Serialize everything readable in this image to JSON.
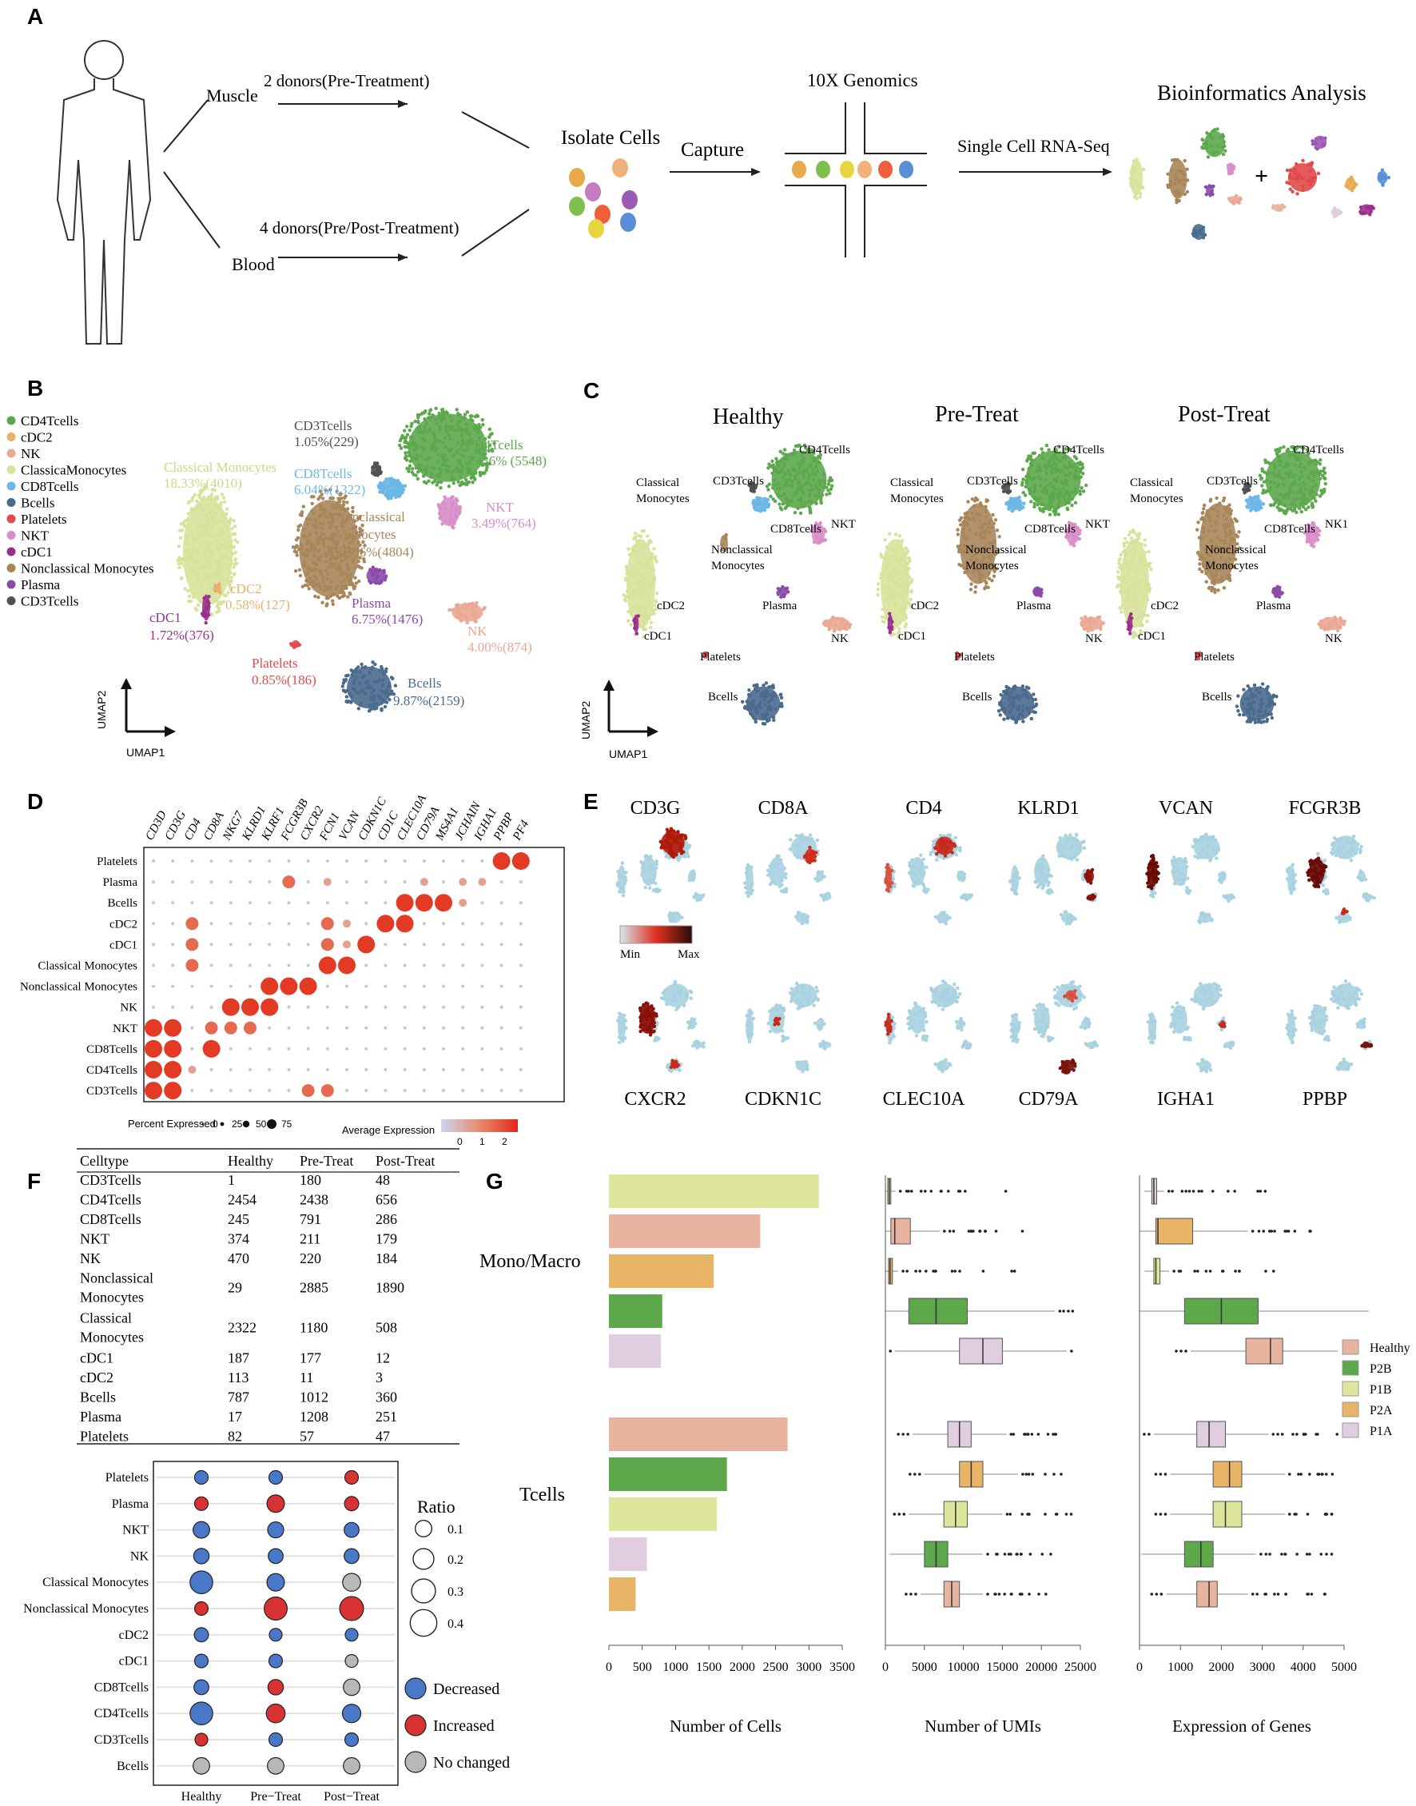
{
  "panels": {
    "A": "A",
    "B": "B",
    "C": "C",
    "D": "D",
    "E": "E",
    "F": "F",
    "G": "G"
  },
  "panelA": {
    "muscle": "Muscle",
    "blood": "Blood",
    "muscle_donors": "2 donors(Pre-Treatment)",
    "blood_donors": "4 donors(Pre/Post-Treatment)",
    "isolate": "Isolate Cells",
    "capture": "Capture",
    "tenx": "10X Genomics",
    "scrna": "Single Cell RNA-Seq",
    "bioinfo": "Bioinformatics Analysis",
    "plus": "+",
    "cell_colors": [
      "#e8a84c",
      "#f0b27a",
      "#c47cc0",
      "#7fbf4d",
      "#f05e3c",
      "#9b59b6",
      "#e8d43c",
      "#5a8fd8"
    ]
  },
  "panelB": {
    "legend": [
      {
        "label": "CD4Tcells",
        "color": "#5da84c"
      },
      {
        "label": "cDC2",
        "color": "#e8b06a"
      },
      {
        "label": "NK",
        "color": "#eaa794"
      },
      {
        "label": "ClassicaMonocytes",
        "color": "#d7e39a"
      },
      {
        "label": "CD8Tcells",
        "color": "#6bb8e8"
      },
      {
        "label": "Bcells",
        "color": "#4a6a8e"
      },
      {
        "label": "Platelets",
        "color": "#e04a4a"
      },
      {
        "label": "NKT",
        "color": "#d88ec8"
      },
      {
        "label": "cDC1",
        "color": "#9b2f8e"
      },
      {
        "label": "Nonclassical Monocytes",
        "color": "#a8865a"
      },
      {
        "label": "Plasma",
        "color": "#8a4aa8"
      },
      {
        "label": "CD3Tcells",
        "color": "#505055"
      }
    ],
    "labels": {
      "cd3_name": "CD3Tcells",
      "cd3_pct": "1.05%(229)",
      "cd4_name": "CD4Tcells",
      "cd4_pct": "25.36%  (5548)",
      "classical_name": "Classical Monocytes",
      "classical_pct": "18.33%(4010)",
      "cd8_name": "CD8Tcells",
      "cd8_pct": "6.04%(1322)",
      "noncl_name1": "Nonclassical",
      "noncl_name2": "Monocytes",
      "noncl_pct": "21.96%(4804)",
      "nkt_name": "NKT",
      "nkt_pct": "3.49%(764)",
      "cdc2_name": "cDC2",
      "cdc2_pct": "0.58%(127)",
      "plasma_name": "Plasma",
      "plasma_pct": "6.75%(1476)",
      "nk_name": "NK",
      "nk_pct": "4.00%(874)",
      "cdc1_name": "cDC1",
      "cdc1_pct": "1.72%(376)",
      "platelets_name": "Platelets",
      "platelets_pct": "0.85%(186)",
      "bcells_name": "Bcells",
      "bcells_pct": "9.87%(2159)"
    },
    "umap1": "UMAP1",
    "umap2": "UMAP2"
  },
  "panelC": {
    "titles": [
      "Healthy",
      "Pre-Treat",
      "Post-Treat"
    ],
    "healthy": {
      "cd4": "CD4Tcells",
      "cd3": "CD3Tcells",
      "classical1": "Classical",
      "classical2": "Monocytes",
      "cd8": "CD8Tcells",
      "nkt": "NKT",
      "noncl1": "Nonclassical",
      "noncl2": "Monocytes",
      "cdc2": "cDC2",
      "plasma": "Plasma",
      "cdc1": "cDC1",
      "nk": "NK",
      "platelets": "Platelets",
      "bcells": "Bcells"
    },
    "pre": {
      "cd4": "CD4Tcells",
      "cd3": "CD3Tcells",
      "classical1": "Classical",
      "classical2": "Monocytes",
      "cd8": "CD8Tcells",
      "nkt": "NKT",
      "noncl1": "Nonclassical",
      "noncl2": "Monocytes",
      "cdc2": "cDC2",
      "plasma": "Plasma",
      "cdc1": "cDC1",
      "nk": "NK",
      "platelets": "Platelets",
      "bcells": "Bcells"
    },
    "post": {
      "cd4": "CD4Tcells",
      "cd3": "CD3Tcells",
      "classical1": "Classical",
      "classical2": "Monocytes",
      "cd8": "CD8Tcells",
      "nkt": "NK1",
      "noncl1": "Nonclassical",
      "noncl2": "Monocytes",
      "cdc2": "cDC2",
      "plasma": "Plasma",
      "cdc1": "cDC1",
      "nk": "NK",
      "platelets": "Platelets",
      "bcells": "Bcells"
    },
    "umap1": "UMAP1",
    "umap2": "UMAP2"
  },
  "panelE": {
    "top_genes": [
      "CD3G",
      "CD8A",
      "CD4",
      "KLRD1",
      "VCAN",
      "FCGR3B"
    ],
    "bottom_genes": [
      "CXCR2",
      "CDKN1C",
      "CLEC10A",
      "CD79A",
      "IGHA1",
      "PPBP"
    ],
    "min": "Min",
    "max": "Max"
  },
  "panelF": {
    "columns": [
      "Celltype",
      "Healthy",
      "Pre-Treat",
      "Post-Treat"
    ],
    "rows": [
      {
        "name": [
          "CD3Tcells"
        ],
        "h": "1",
        "pre": "180",
        "post": "48"
      },
      {
        "name": [
          "CD4Tcells"
        ],
        "h": "2454",
        "pre": "2438",
        "post": "656"
      },
      {
        "name": [
          "CD8Tcells"
        ],
        "h": "245",
        "pre": "791",
        "post": "286"
      },
      {
        "name": [
          "NKT"
        ],
        "h": "374",
        "pre": "211",
        "post": "179"
      },
      {
        "name": [
          "NK"
        ],
        "h": "470",
        "pre": "220",
        "post": "184"
      },
      {
        "name": [
          "Nonclassical",
          "Monocytes"
        ],
        "h": "29",
        "pre": "2885",
        "post": "1890"
      },
      {
        "name": [
          "Classical",
          "Monocytes"
        ],
        "h": "2322",
        "pre": "1180",
        "post": "508"
      },
      {
        "name": [
          "cDC1"
        ],
        "h": "187",
        "pre": "177",
        "post": "12"
      },
      {
        "name": [
          "cDC2"
        ],
        "h": "113",
        "pre": "11",
        "post": "3"
      },
      {
        "name": [
          "Bcells"
        ],
        "h": "787",
        "pre": "1012",
        "post": "360"
      },
      {
        "name": [
          "Plasma"
        ],
        "h": "17",
        "pre": "1208",
        "post": "251"
      },
      {
        "name": [
          "Platelets"
        ],
        "h": "82",
        "pre": "57",
        "post": "47"
      }
    ],
    "ratio_title": "Ratio",
    "ratio_sizes": [
      "0.1",
      "0.2",
      "0.3",
      "0.4"
    ],
    "status": [
      {
        "label": "Decreased",
        "color": "#4a78c8"
      },
      {
        "label": "Increased",
        "color": "#d83232"
      },
      {
        "label": "No changed",
        "color": "#b8b8b8"
      }
    ]
  },
  "chart_data": [
    {
      "type": "scatter",
      "panel": "D",
      "genes": [
        "CD3D",
        "CD3G",
        "CD4",
        "CD8A",
        "NKG7",
        "KLRD1",
        "KLRF1",
        "FCGR3B",
        "CXCR2",
        "FCN1",
        "VCAN",
        "CDKN1C",
        "CD1C",
        "CLEC10A",
        "CD79A",
        "MS4A1",
        "JCHAIN",
        "IGHA1",
        "PPBP",
        "PF4"
      ],
      "celltypes": [
        "Platelets",
        "Plasma",
        "Bcells",
        "cDC2",
        "cDC1",
        "Classical Monocytes",
        "Nonclassical Monocytes",
        "NK",
        "NKT",
        "CD8Tcells",
        "CD4Tcells",
        "CD3Tcells"
      ],
      "dots": [
        [
          0,
          0,
          0,
          0,
          0,
          0,
          0,
          0,
          0,
          0,
          0,
          0,
          0,
          0,
          0,
          0,
          0,
          0,
          3,
          3
        ],
        [
          0,
          0,
          0,
          0,
          0,
          0,
          0,
          2,
          0,
          1,
          0,
          0,
          0,
          0,
          1,
          0,
          1,
          1,
          0,
          0
        ],
        [
          0,
          0,
          0,
          0,
          0,
          0,
          0,
          0,
          0,
          0,
          0,
          0,
          0,
          3,
          3,
          3,
          1,
          0,
          0,
          0
        ],
        [
          0,
          0,
          2,
          0,
          0,
          0,
          0,
          0,
          0,
          2,
          1,
          0,
          3,
          3,
          0,
          0,
          0,
          0,
          0,
          0
        ],
        [
          0,
          0,
          2,
          0,
          0,
          0,
          0,
          0,
          0,
          2,
          1,
          3,
          0,
          0,
          0,
          0,
          0,
          0,
          0,
          0
        ],
        [
          0,
          0,
          2,
          0,
          0,
          0,
          0,
          0,
          0,
          3,
          3,
          0,
          0,
          0,
          0,
          0,
          0,
          0,
          0,
          0
        ],
        [
          0,
          0,
          0,
          0,
          0,
          0,
          3,
          3,
          3,
          0,
          0,
          0,
          0,
          0,
          0,
          0,
          0,
          0,
          0,
          0
        ],
        [
          0,
          0,
          0,
          0,
          3,
          3,
          3,
          0,
          0,
          0,
          0,
          0,
          0,
          0,
          0,
          0,
          0,
          0,
          0,
          0
        ],
        [
          3,
          3,
          0,
          2,
          2,
          2,
          0,
          0,
          0,
          0,
          0,
          0,
          0,
          0,
          0,
          0,
          0,
          0,
          0,
          0
        ],
        [
          3,
          3,
          0,
          3,
          0,
          0,
          0,
          0,
          0,
          0,
          0,
          0,
          0,
          0,
          0,
          0,
          0,
          0,
          0,
          0
        ],
        [
          3,
          3,
          1,
          0,
          0,
          0,
          0,
          0,
          0,
          0,
          0,
          0,
          0,
          0,
          0,
          0,
          0,
          0,
          0,
          0
        ],
        [
          3,
          3,
          0,
          0,
          0,
          0,
          0,
          0,
          2,
          2,
          0,
          0,
          0,
          0,
          0,
          0,
          0,
          0,
          0,
          0
        ]
      ],
      "size_legend_title": "Percent Expressed",
      "size_legend": [
        "0",
        "25",
        "50",
        "75"
      ],
      "color_legend_title": "Average Expression",
      "color_ticks": [
        "0",
        "1",
        "2"
      ]
    },
    {
      "type": "scatter",
      "panel": "F",
      "x": [
        "Healthy",
        "Pre−Treat",
        "Post−Treat"
      ],
      "celltypes": [
        "Platelets",
        "Plasma",
        "NKT",
        "NK",
        "Classical Monocytes",
        "Nonclassical Monocytes",
        "cDC2",
        "cDC1",
        "CD8Tcells",
        "CD4Tcells",
        "CD3Tcells",
        "Bcells"
      ],
      "ratio": [
        [
          0.05,
          0.05,
          0.05
        ],
        [
          0.05,
          0.12,
          0.06
        ],
        [
          0.1,
          0.09,
          0.07
        ],
        [
          0.08,
          0.07,
          0.07
        ],
        [
          0.26,
          0.12,
          0.13
        ],
        [
          0.05,
          0.27,
          0.3
        ],
        [
          0.06,
          0.04,
          0.04
        ],
        [
          0.05,
          0.05,
          0.04
        ],
        [
          0.07,
          0.08,
          0.1
        ],
        [
          0.26,
          0.15,
          0.14
        ],
        [
          0.04,
          0.05,
          0.05
        ],
        [
          0.1,
          0.1,
          0.1
        ]
      ],
      "status": [
        [
          "D",
          "D",
          "I"
        ],
        [
          "I",
          "I",
          "I"
        ],
        [
          "D",
          "D",
          "D"
        ],
        [
          "D",
          "D",
          "D"
        ],
        [
          "D",
          "D",
          "N"
        ],
        [
          "I",
          "I",
          "I"
        ],
        [
          "D",
          "D",
          "D"
        ],
        [
          "D",
          "D",
          "N"
        ],
        [
          "D",
          "I",
          "N"
        ],
        [
          "D",
          "I",
          "D"
        ],
        [
          "I",
          "D",
          "D"
        ],
        [
          "N",
          "N",
          "N"
        ]
      ]
    },
    {
      "type": "bar",
      "panel": "G",
      "xlabel": "Number of Cells",
      "xticks": [
        "0",
        "500",
        "1000",
        "1500",
        "2000",
        "2500",
        "3000",
        "3500"
      ],
      "xlim": [
        0,
        3500
      ],
      "groups": [
        {
          "label": "Mono/Macro",
          "bars": [
            {
              "sample": "P1B",
              "value": 3150
            },
            {
              "sample": "Healthy",
              "value": 2270
            },
            {
              "sample": "P2A",
              "value": 1570
            },
            {
              "sample": "P2B",
              "value": 800
            },
            {
              "sample": "P1A",
              "value": 780
            }
          ]
        },
        {
          "label": "Tcells",
          "bars": [
            {
              "sample": "Healthy",
              "value": 2680
            },
            {
              "sample": "P2B",
              "value": 1770
            },
            {
              "sample": "P1B",
              "value": 1620
            },
            {
              "sample": "P1A",
              "value": 570
            },
            {
              "sample": "P2A",
              "value": 400
            }
          ]
        }
      ],
      "legend": [
        {
          "name": "Healthy",
          "color": "#e8b4a0"
        },
        {
          "name": "P2B",
          "color": "#5ea84c"
        },
        {
          "name": "P1B",
          "color": "#dde69a"
        },
        {
          "name": "P2A",
          "color": "#e8b466"
        },
        {
          "name": "P1A",
          "color": "#e0cee0"
        }
      ]
    },
    {
      "type": "box",
      "panel": "G",
      "xlabel": "Number of UMIs",
      "xticks": [
        "0",
        "5000",
        "10000",
        "15000",
        "20000",
        "25000"
      ],
      "xlim": [
        0,
        25000
      ],
      "mono": [
        {
          "sample": "P1B",
          "q1": 300,
          "med": 500,
          "q3": 700
        },
        {
          "sample": "Healthy",
          "q1": 700,
          "med": 1200,
          "q3": 3200
        },
        {
          "sample": "P2A",
          "q1": 400,
          "med": 600,
          "q3": 900
        },
        {
          "sample": "P2B",
          "q1": 3000,
          "med": 6500,
          "q3": 10500
        },
        {
          "sample": "P1A",
          "q1": 9500,
          "med": 12500,
          "q3": 15000
        }
      ],
      "tcells": [
        {
          "sample": "P1A",
          "q1": 8000,
          "med": 9500,
          "q3": 11000
        },
        {
          "sample": "P2A",
          "q1": 9500,
          "med": 11000,
          "q3": 12500
        },
        {
          "sample": "P1B",
          "q1": 7500,
          "med": 9000,
          "q3": 10500
        },
        {
          "sample": "P2B",
          "q1": 5000,
          "med": 6500,
          "q3": 8000
        },
        {
          "sample": "Healthy",
          "q1": 7500,
          "med": 8500,
          "q3": 9500
        }
      ]
    },
    {
      "type": "box",
      "panel": "G",
      "xlabel": "Expression of Genes",
      "xticks": [
        "0",
        "1000",
        "2000",
        "3000",
        "4000",
        "5000"
      ],
      "xlim": [
        0,
        5000
      ],
      "mono": [
        {
          "sample": "P1A",
          "q1": 300,
          "med": 350,
          "q3": 420
        },
        {
          "sample": "P2A",
          "q1": 400,
          "med": 450,
          "q3": 1300
        },
        {
          "sample": "P1B",
          "q1": 350,
          "med": 400,
          "q3": 500
        },
        {
          "sample": "P2B",
          "q1": 1100,
          "med": 2000,
          "q3": 2900
        },
        {
          "sample": "Healthy",
          "q1": 2600,
          "med": 3200,
          "q3": 3500
        }
      ],
      "tcells": [
        {
          "sample": "P1A",
          "q1": 1400,
          "med": 1700,
          "q3": 2100
        },
        {
          "sample": "P2A",
          "q1": 1800,
          "med": 2200,
          "q3": 2500
        },
        {
          "sample": "P1B",
          "q1": 1800,
          "med": 2100,
          "q3": 2500
        },
        {
          "sample": "P2B",
          "q1": 1100,
          "med": 1500,
          "q3": 1800
        },
        {
          "sample": "Healthy",
          "q1": 1400,
          "med": 1700,
          "q3": 1900
        }
      ]
    }
  ]
}
